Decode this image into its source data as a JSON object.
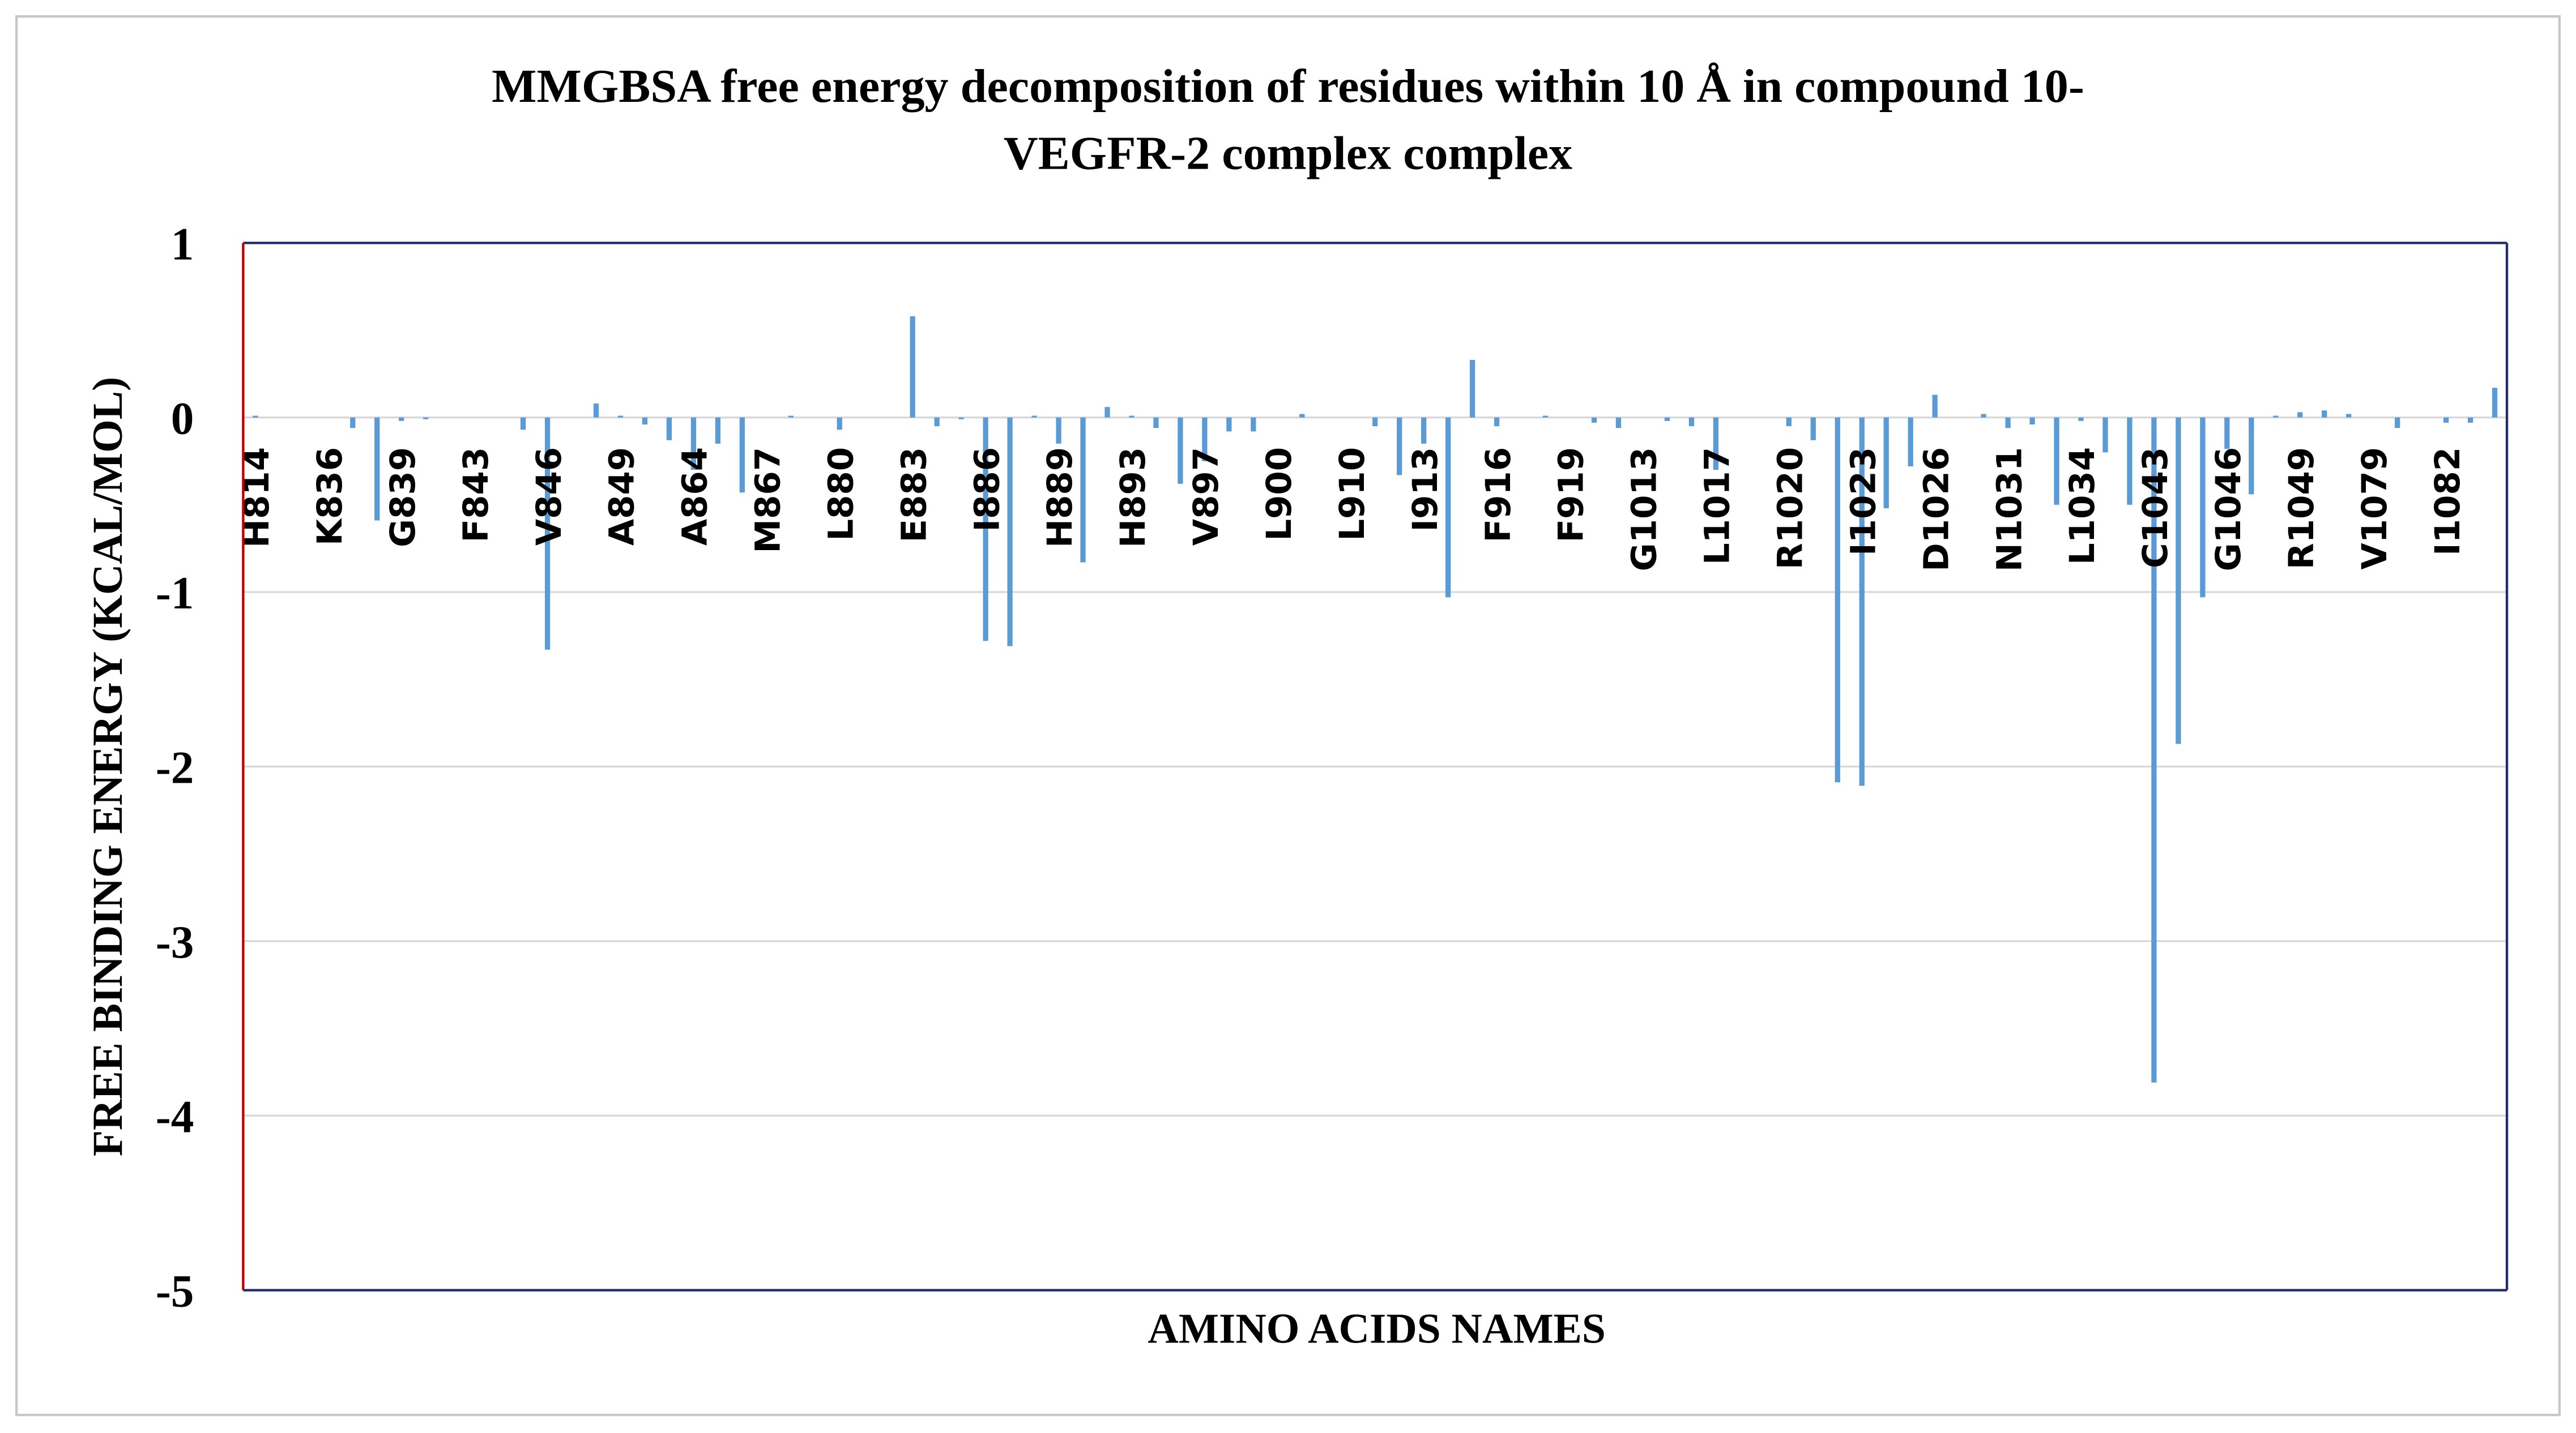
{
  "chart_data": {
    "type": "bar",
    "title": [
      "MMGBSA free energy decomposition of residues within 10 Å in compound 10-",
      "VEGFR-2 complex complex"
    ],
    "x_label": "AMINO ACIDS NAMES",
    "y_label": "FREE BINDING ENERGY (KCAL/MOL)",
    "color": "#5b9bd5",
    "grid": true,
    "ylim": [
      -5,
      1
    ],
    "yticks": [
      -5,
      -4,
      -3,
      -2,
      -1,
      0,
      1
    ],
    "categories": [
      "H814",
      null,
      null,
      "K836",
      null,
      null,
      "G839",
      null,
      null,
      "F843",
      null,
      null,
      "V846",
      null,
      null,
      "A849",
      null,
      null,
      "A864",
      null,
      null,
      "M867",
      null,
      null,
      "L880",
      null,
      null,
      "E883",
      null,
      null,
      "I886",
      null,
      null,
      "H889",
      null,
      null,
      "H893",
      null,
      null,
      "V897",
      null,
      null,
      "L900",
      null,
      null,
      "L910",
      null,
      null,
      "I913",
      null,
      null,
      "F916",
      null,
      null,
      "F919",
      null,
      null,
      "G1013",
      null,
      null,
      "L1017",
      null,
      null,
      "R1020",
      null,
      null,
      "I1023",
      null,
      null,
      "D1026",
      null,
      null,
      "N1031",
      null,
      null,
      "L1034",
      null,
      null,
      "C1043",
      null,
      null,
      "G1046",
      null,
      null,
      "R1049",
      null,
      null,
      "V1079",
      null,
      null,
      "I1082",
      null,
      null
    ],
    "values": [
      0.01,
      0,
      0,
      0,
      -0.06,
      -0.59,
      -0.02,
      -0.01,
      0,
      0,
      0,
      -0.07,
      -1.33,
      0,
      0.08,
      0.01,
      -0.04,
      -0.13,
      -0.3,
      -0.15,
      -0.43,
      0,
      0.01,
      0,
      -0.07,
      0,
      0,
      0.58,
      -0.05,
      -0.01,
      -1.28,
      -1.31,
      0.01,
      -0.15,
      -0.83,
      0.06,
      0.01,
      -0.06,
      -0.38,
      -0.25,
      -0.08,
      -0.08,
      0,
      0.02,
      0,
      0,
      -0.05,
      -0.33,
      -0.15,
      -1.03,
      0.33,
      -0.05,
      0,
      0.01,
      0,
      -0.03,
      -0.06,
      0,
      -0.02,
      -0.05,
      -0.3,
      0,
      0,
      -0.05,
      -0.13,
      -2.09,
      -2.11,
      -0.52,
      -0.28,
      0.13,
      0,
      0.02,
      -0.06,
      -0.04,
      -0.5,
      -0.02,
      -0.2,
      -0.5,
      -3.81,
      -1.87,
      -1.03,
      -0.18,
      -0.44,
      0.01,
      0.03,
      0.04,
      0.02,
      0,
      -0.06,
      0,
      -0.03,
      -0.03,
      0.17
    ]
  }
}
